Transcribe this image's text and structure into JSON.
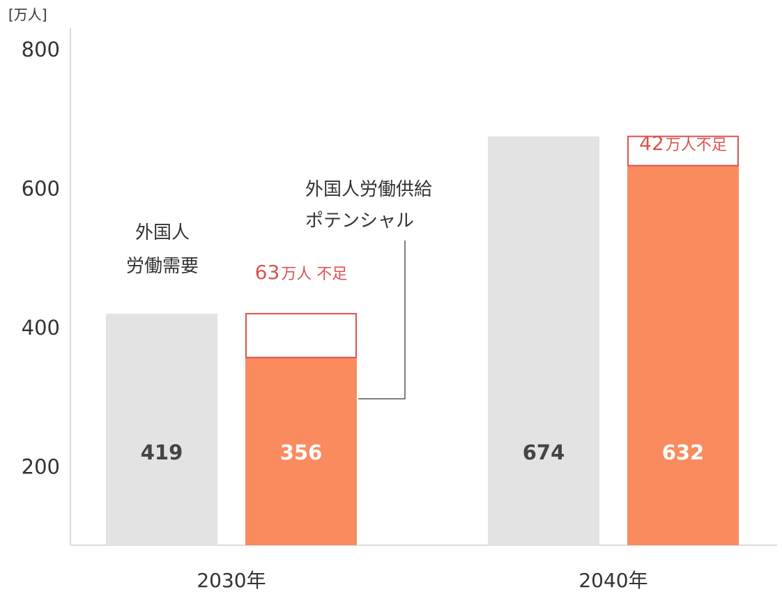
{
  "chart_data": {
    "type": "bar",
    "unit_label": "[万人]",
    "categories": [
      "2030年",
      "2040年"
    ],
    "y_ticks": [
      "800",
      "600",
      "400",
      "200"
    ],
    "y_tick_values": [
      800,
      600,
      400,
      200
    ],
    "ylim": [
      86,
      800
    ],
    "grid": false,
    "series": [
      {
        "name": "外国人労働需要",
        "values": [
          419,
          674
        ],
        "color": "#e3e3e3",
        "value_text": [
          "419",
          "674"
        ]
      },
      {
        "name": "外国人労働供給ポテンシャル",
        "values": [
          356,
          632
        ],
        "color": "#f98b5f",
        "value_text": [
          "356",
          "632"
        ]
      }
    ],
    "shortfall": {
      "values": [
        63,
        42
      ],
      "number_text": [
        "63",
        "42"
      ],
      "unit_text": [
        "万人 不足",
        "万人不足"
      ],
      "color": "#d9534f"
    },
    "annotations": {
      "demand_label_lines": [
        "外国人",
        "労働需要"
      ],
      "supply_label_lines": [
        "外国人労働供給",
        "ポテンシャル"
      ]
    }
  }
}
